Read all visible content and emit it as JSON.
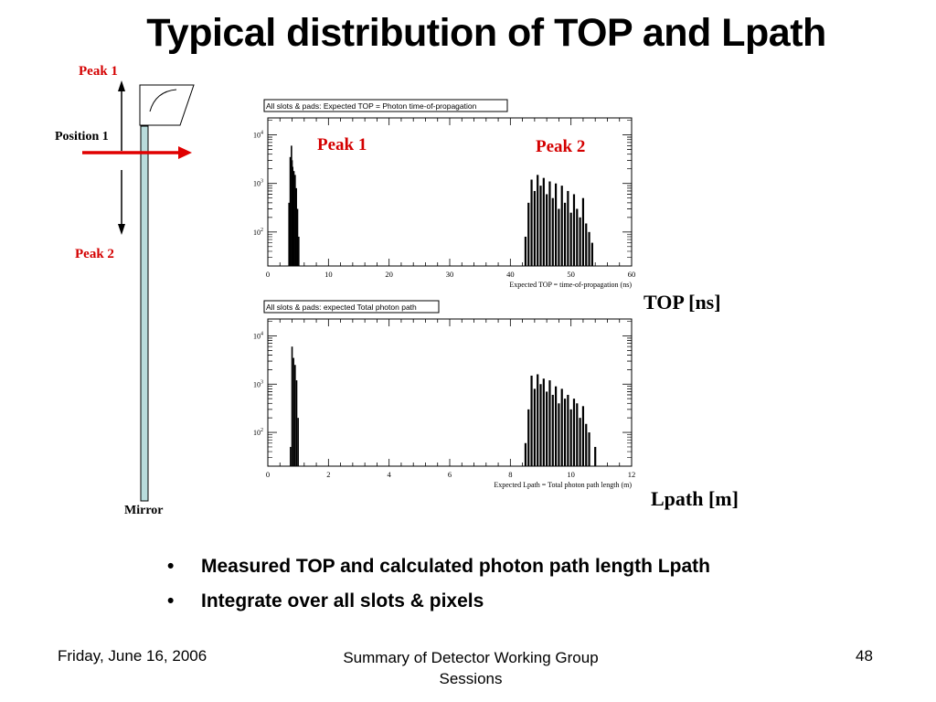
{
  "slide": {
    "title": "Typical distribution of TOP and Lpath",
    "bullets": [
      "Measured TOP and calculated photon path length Lpath",
      "Integrate over all slots & pixels"
    ],
    "footer": {
      "date": "Friday, June 16, 2006",
      "center": "Summary of Detector Working Group  Sessions",
      "page": "48"
    }
  },
  "diagram": {
    "peak1_label": "Peak 1",
    "peak2_label": "Peak 2",
    "position_label": "Position 1",
    "mirror_label": "Mirror",
    "colors": {
      "accent": "#e00000",
      "bar": "#b9dcdc"
    }
  },
  "chart_data": [
    {
      "type": "bar",
      "title": "All slots & pads: Expected TOP = Photon time-of-propagation",
      "xlabel": "Expected TOP = time-of-propagation (ns)",
      "ylabel": "",
      "xlim": [
        0,
        60
      ],
      "xticks": [
        0,
        10,
        20,
        30,
        40,
        50,
        60
      ],
      "ylog": true,
      "yticks": [
        "10^4",
        "10^3",
        "10^2"
      ],
      "side_label": "TOP [ns]",
      "annotations": [
        "Peak 1",
        "Peak 2"
      ],
      "peak1": {
        "x": [
          3.5,
          3.7,
          3.9,
          4.0,
          4.1,
          4.3,
          4.5,
          4.7,
          4.9,
          5.1
        ],
        "y": [
          400,
          3500,
          6000,
          3000,
          2200,
          1800,
          1500,
          800,
          300,
          80
        ]
      },
      "peak2": {
        "x": [
          42.5,
          43.0,
          43.5,
          44.0,
          44.5,
          45.0,
          45.5,
          46.0,
          46.5,
          47.0,
          47.5,
          48.0,
          48.5,
          49.0,
          49.5,
          50.0,
          50.5,
          51.0,
          51.5,
          52.0,
          52.5,
          53.0,
          53.5
        ],
        "y": [
          80,
          400,
          1200,
          700,
          1500,
          900,
          1300,
          600,
          1100,
          500,
          1000,
          300,
          900,
          400,
          700,
          250,
          600,
          300,
          200,
          500,
          150,
          100,
          60
        ]
      }
    },
    {
      "type": "bar",
      "title": "All slots & pads: expected Total photon path",
      "xlabel": "Expected Lpath = Total photon path length (m)",
      "ylabel": "",
      "xlim": [
        0,
        12
      ],
      "xticks": [
        0,
        2,
        4,
        6,
        8,
        10,
        12
      ],
      "ylog": true,
      "yticks": [
        "10^4",
        "10^3",
        "10^2"
      ],
      "side_label": "Lpath [m]",
      "peak1": {
        "x": [
          0.75,
          0.8,
          0.85,
          0.9,
          0.95,
          1.0
        ],
        "y": [
          50,
          6000,
          3500,
          2500,
          1200,
          200
        ]
      },
      "peak2": {
        "x": [
          8.5,
          8.6,
          8.7,
          8.8,
          8.9,
          9.0,
          9.1,
          9.2,
          9.3,
          9.4,
          9.5,
          9.6,
          9.7,
          9.8,
          9.9,
          10.0,
          10.1,
          10.2,
          10.3,
          10.4,
          10.5,
          10.6,
          10.8
        ],
        "y": [
          60,
          300,
          1500,
          800,
          1600,
          1000,
          1300,
          700,
          1200,
          600,
          900,
          400,
          800,
          500,
          600,
          300,
          500,
          400,
          200,
          350,
          150,
          100,
          50
        ]
      }
    }
  ]
}
